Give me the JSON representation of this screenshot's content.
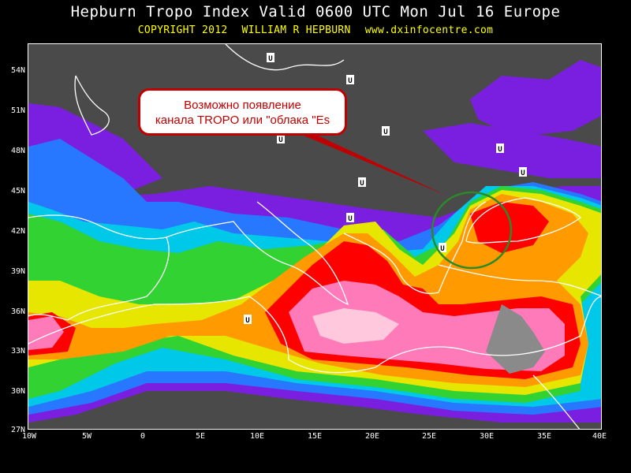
{
  "header": {
    "title": "Hepburn Tropo Index Valid 0600 UTC Mon Jul 16 Europe",
    "copyright": "COPYRIGHT 2012",
    "author": "WILLIAM R HEPBURN",
    "website": "www.dxinfocentre.com"
  },
  "map": {
    "lat_labels": [
      "54N",
      "51N",
      "48N",
      "45N",
      "42N",
      "39N",
      "36N",
      "33N",
      "30N",
      "27N"
    ],
    "lon_labels": [
      "10W",
      "5W",
      "0",
      "5E",
      "10E",
      "15E",
      "20E",
      "25E",
      "30E",
      "35E",
      "40E"
    ],
    "low_marker": "U",
    "colors": {
      "background": "#4a4a4a",
      "level_violet": "#7a1fe0",
      "level_blue": "#2878ff",
      "level_cyan": "#00c8e8",
      "level_green": "#32d232",
      "level_yellow": "#e6e600",
      "level_orange": "#ff9a00",
      "level_red": "#ff0000",
      "level_pink": "#ff7ab8",
      "level_lightpink": "#ffc8dc",
      "level_grey": "#8a8a8a",
      "coastline": "#ffffff",
      "annotation": "#c00000",
      "circle": "#2a8a2a"
    }
  },
  "annotation": {
    "line1": "Возможно появление",
    "line2": "канала TROPO или \"облака \"Es"
  }
}
